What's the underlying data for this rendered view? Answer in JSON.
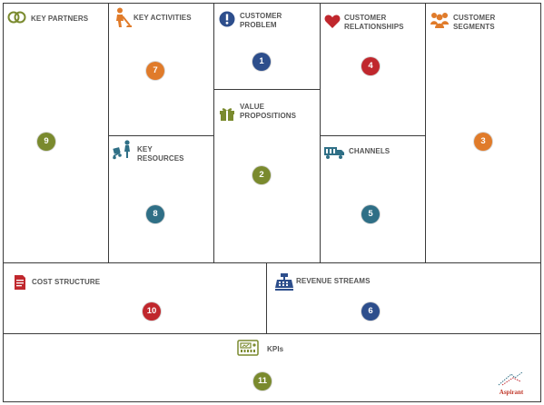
{
  "canvas": {
    "blocks": [
      {
        "key": "key_partners",
        "title": "KEY PARTNERS",
        "number": "9",
        "icon": "rings-icon"
      },
      {
        "key": "key_activities",
        "title": "KEY ACTIVITIES",
        "number": "7",
        "icon": "gardener-icon"
      },
      {
        "key": "customer_problem",
        "title": "CUSTOMER PROBLEM",
        "number": "1",
        "icon": "exclamation-icon"
      },
      {
        "key": "value_propositions",
        "title": "VALUE PROPOSITIONS",
        "number": "2",
        "icon": "gift-icon"
      },
      {
        "key": "customer_relationships",
        "title": "CUSTOMER RELATIONSHIPS",
        "number": "4",
        "icon": "heart-icon"
      },
      {
        "key": "customer_segments",
        "title": "CUSTOMER SEGMENTS",
        "number": "3",
        "icon": "people-group-icon"
      },
      {
        "key": "key_resources",
        "title": "KEY RESOURCES",
        "number": "8",
        "icon": "hand-truck-icon"
      },
      {
        "key": "channels",
        "title": "CHANNELS",
        "number": "5",
        "icon": "truck-icon"
      },
      {
        "key": "cost_structure",
        "title": "COST STRUCTURE",
        "number": "10",
        "icon": "document-icon"
      },
      {
        "key": "revenue_streams",
        "title": "REVENUE STREAMS",
        "number": "6",
        "icon": "cash-register-icon"
      },
      {
        "key": "kpis",
        "title": "KPIs",
        "number": "11",
        "icon": "gauge-panel-icon"
      }
    ]
  },
  "colors": {
    "border": "#3a3a3a",
    "title_text": "#555555",
    "olive": "#7a8a2e",
    "orange": "#e07b2a",
    "navy": "#2d4e8c",
    "red": "#c0272d",
    "teal": "#2f6f86",
    "logo_red": "#c0392b"
  },
  "logo": {
    "text": "Aspirant"
  }
}
